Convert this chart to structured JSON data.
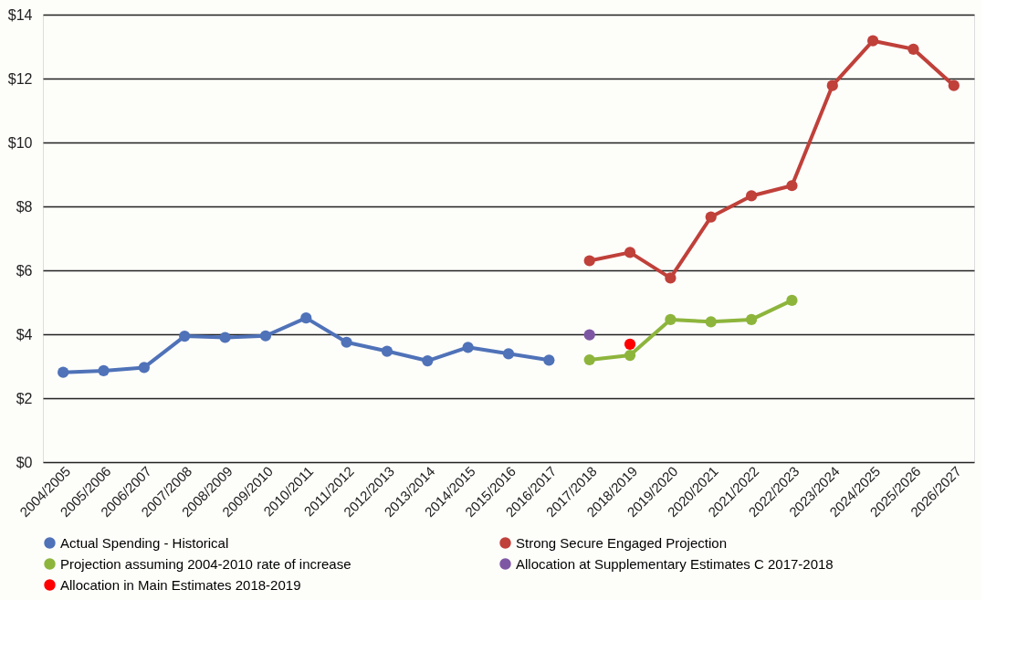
{
  "chart_data": {
    "type": "line",
    "categories": [
      "2004/2005",
      "2005/2006",
      "2006/2007",
      "2007/2008",
      "2008/2009",
      "2009/2010",
      "2010/2011",
      "2011/2012",
      "2012/2013",
      "2013/2014",
      "2014/2015",
      "2015/2016",
      "2016/2017",
      "2017/2018",
      "2018/2019",
      "2019/2020",
      "2020/2021",
      "2021/2022",
      "2022/2023",
      "2023/2024",
      "2024/2025",
      "2025/2026",
      "2026/2027"
    ],
    "series": [
      {
        "name": "Actual Spending - Historical",
        "color": "#4f72b8",
        "values": [
          2.81,
          2.86,
          2.96,
          3.94,
          3.9,
          3.95,
          4.51,
          3.75,
          3.47,
          3.17,
          3.59,
          3.39,
          3.19,
          null,
          null,
          null,
          null,
          null,
          null,
          null,
          null,
          null,
          null
        ]
      },
      {
        "name": "Strong Secure Engaged Projection",
        "color": "#c0403a",
        "values": [
          null,
          null,
          null,
          null,
          null,
          null,
          null,
          null,
          null,
          null,
          null,
          null,
          null,
          6.3,
          6.56,
          5.76,
          7.67,
          8.33,
          8.65,
          11.78,
          13.18,
          12.92,
          11.78
        ]
      },
      {
        "name": "Projection assuming 2004-2010 rate of increase",
        "color": "#8db53c",
        "values": [
          null,
          null,
          null,
          null,
          null,
          null,
          null,
          null,
          null,
          null,
          null,
          null,
          null,
          3.2,
          3.34,
          4.46,
          4.39,
          4.46,
          5.06,
          null,
          null,
          null,
          null
        ]
      },
      {
        "name": "Allocation at Supplementary Estimates C 2017-2018",
        "color": "#7e57a4",
        "values": [
          null,
          null,
          null,
          null,
          null,
          null,
          null,
          null,
          null,
          null,
          null,
          null,
          null,
          3.98,
          null,
          null,
          null,
          null,
          null,
          null,
          null,
          null,
          null
        ]
      },
      {
        "name": "Allocation in Main Estimates 2018-2019",
        "color": "#ff0000",
        "values": [
          null,
          null,
          null,
          null,
          null,
          null,
          null,
          null,
          null,
          null,
          null,
          null,
          null,
          null,
          3.69,
          null,
          null,
          null,
          null,
          null,
          null,
          null,
          null
        ]
      }
    ],
    "ylim": [
      0,
      14
    ],
    "yticks": [
      {
        "value": 0,
        "label": "$0"
      },
      {
        "value": 2,
        "label": "$2"
      },
      {
        "value": 4,
        "label": "$4"
      },
      {
        "value": 6,
        "label": "$6"
      },
      {
        "value": 8,
        "label": "$8"
      },
      {
        "value": 10,
        "label": "$10"
      },
      {
        "value": 12,
        "label": "$12"
      },
      {
        "value": 14,
        "label": "$14"
      }
    ],
    "grid": "y",
    "legend": "bottom",
    "marker": "circle",
    "line_style": "solid"
  }
}
